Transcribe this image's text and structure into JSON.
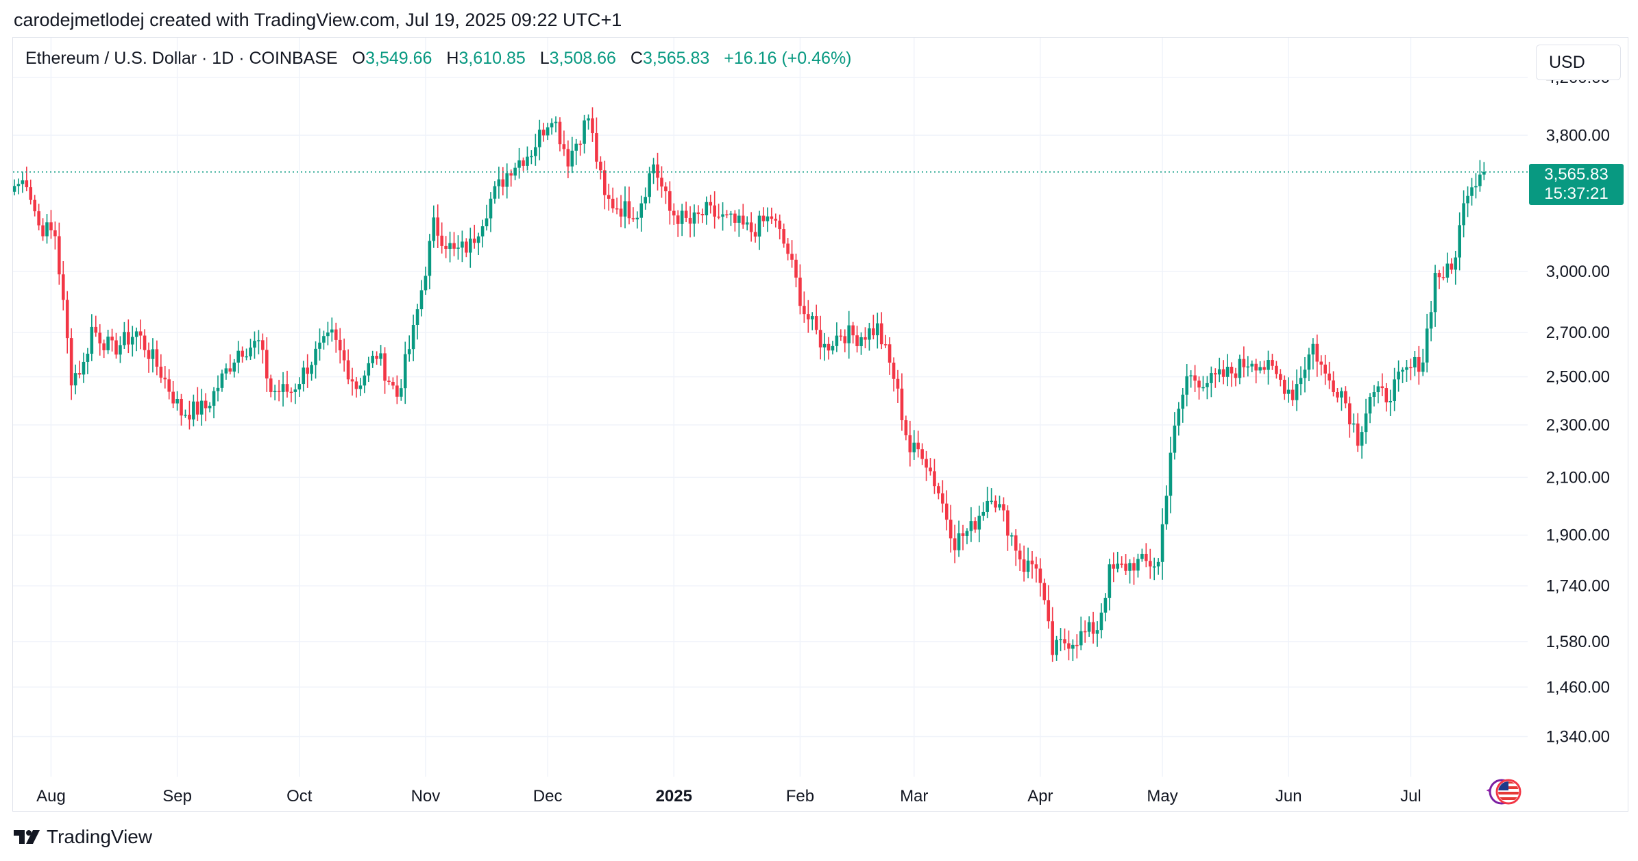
{
  "header": {
    "credit": "carodejmetlodej created with TradingView.com, Jul 19, 2025 09:22 UTC+1"
  },
  "legend": {
    "symbol": "Ethereum / U.S. Dollar · 1D · COINBASE",
    "open_label": "O",
    "open": "3,549.66",
    "high_label": "H",
    "high": "3,610.85",
    "low_label": "L",
    "low": "3,508.66",
    "close_label": "C",
    "close": "3,565.83",
    "change": "+16.16 (+0.46%)"
  },
  "currency_button": "USD",
  "price_tag": {
    "price": "3,565.83",
    "countdown": "15:37:21"
  },
  "footer": {
    "brand": "TradingView"
  },
  "colors": {
    "up": "#089981",
    "down": "#f23645",
    "grid": "#f0f3fa",
    "text": "#131722"
  },
  "chart_data": {
    "type": "candlestick",
    "title": "Ethereum / U.S. Dollar · 1D · COINBASE",
    "scale": "log",
    "ylim": [
      1250,
      4500
    ],
    "y_ticks": [
      {
        "v": 4200,
        "label": "4,200.00"
      },
      {
        "v": 3800,
        "label": "3,800.00"
      },
      {
        "v": 3000,
        "label": "3,000.00"
      },
      {
        "v": 2700,
        "label": "2,700.00"
      },
      {
        "v": 2500,
        "label": "2,500.00"
      },
      {
        "v": 2300,
        "label": "2,300.00"
      },
      {
        "v": 2100,
        "label": "2,100.00"
      },
      {
        "v": 1900,
        "label": "1,900.00"
      },
      {
        "v": 1740,
        "label": "1,740.00"
      },
      {
        "v": 1580,
        "label": "1,580.00"
      },
      {
        "v": 1460,
        "label": "1,460.00"
      },
      {
        "v": 1340,
        "label": "1,340.00"
      }
    ],
    "x_ticks": [
      {
        "i": 9,
        "label": "Aug"
      },
      {
        "i": 40,
        "label": "Sep"
      },
      {
        "i": 70,
        "label": "Oct"
      },
      {
        "i": 101,
        "label": "Nov"
      },
      {
        "i": 131,
        "label": "Dec"
      },
      {
        "i": 162,
        "label": "2025",
        "bold": true
      },
      {
        "i": 193,
        "label": "Feb"
      },
      {
        "i": 221,
        "label": "Mar"
      },
      {
        "i": 252,
        "label": "Apr"
      },
      {
        "i": 282,
        "label": "May"
      },
      {
        "i": 313,
        "label": "Jun"
      },
      {
        "i": 343,
        "label": "Jul"
      }
    ],
    "last_price": 3565.83,
    "anchors": [
      {
        "i": 0,
        "c": 3480
      },
      {
        "i": 3,
        "c": 3520
      },
      {
        "i": 6,
        "c": 3250
      },
      {
        "i": 10,
        "c": 3200
      },
      {
        "i": 14,
        "c": 2500
      },
      {
        "i": 17,
        "c": 2550
      },
      {
        "i": 19,
        "c": 2720
      },
      {
        "i": 24,
        "c": 2620
      },
      {
        "i": 30,
        "c": 2700
      },
      {
        "i": 36,
        "c": 2520
      },
      {
        "i": 41,
        "c": 2350
      },
      {
        "i": 47,
        "c": 2370
      },
      {
        "i": 55,
        "c": 2620
      },
      {
        "i": 60,
        "c": 2650
      },
      {
        "i": 63,
        "c": 2440
      },
      {
        "i": 68,
        "c": 2440
      },
      {
        "i": 74,
        "c": 2600
      },
      {
        "i": 78,
        "c": 2680
      },
      {
        "i": 84,
        "c": 2460
      },
      {
        "i": 89,
        "c": 2600
      },
      {
        "i": 94,
        "c": 2420
      },
      {
        "i": 98,
        "c": 2700
      },
      {
        "i": 103,
        "c": 3250
      },
      {
        "i": 108,
        "c": 3100
      },
      {
        "i": 112,
        "c": 3140
      },
      {
        "i": 117,
        "c": 3400
      },
      {
        "i": 122,
        "c": 3600
      },
      {
        "i": 127,
        "c": 3700
      },
      {
        "i": 132,
        "c": 3950
      },
      {
        "i": 136,
        "c": 3650
      },
      {
        "i": 141,
        "c": 3920
      },
      {
        "i": 145,
        "c": 3400
      },
      {
        "i": 149,
        "c": 3350
      },
      {
        "i": 153,
        "c": 3330
      },
      {
        "i": 157,
        "c": 3620
      },
      {
        "i": 161,
        "c": 3330
      },
      {
        "i": 166,
        "c": 3260
      },
      {
        "i": 170,
        "c": 3330
      },
      {
        "i": 175,
        "c": 3280
      },
      {
        "i": 181,
        "c": 3220
      },
      {
        "i": 186,
        "c": 3300
      },
      {
        "i": 190,
        "c": 3100
      },
      {
        "i": 194,
        "c": 2800
      },
      {
        "i": 199,
        "c": 2630
      },
      {
        "i": 203,
        "c": 2700
      },
      {
        "i": 207,
        "c": 2680
      },
      {
        "i": 212,
        "c": 2720
      },
      {
        "i": 216,
        "c": 2500
      },
      {
        "i": 220,
        "c": 2200
      },
      {
        "i": 223,
        "c": 2200
      },
      {
        "i": 227,
        "c": 2050
      },
      {
        "i": 231,
        "c": 1880
      },
      {
        "i": 235,
        "c": 1920
      },
      {
        "i": 240,
        "c": 2050
      },
      {
        "i": 244,
        "c": 1930
      },
      {
        "i": 248,
        "c": 1800
      },
      {
        "i": 251,
        "c": 1810
      },
      {
        "i": 255,
        "c": 1550
      },
      {
        "i": 258,
        "c": 1580
      },
      {
        "i": 261,
        "c": 1590
      },
      {
        "i": 266,
        "c": 1620
      },
      {
        "i": 269,
        "c": 1780
      },
      {
        "i": 275,
        "c": 1810
      },
      {
        "i": 281,
        "c": 1810
      },
      {
        "i": 284,
        "c": 2200
      },
      {
        "i": 288,
        "c": 2500
      },
      {
        "i": 294,
        "c": 2480
      },
      {
        "i": 299,
        "c": 2520
      },
      {
        "i": 304,
        "c": 2580
      },
      {
        "i": 309,
        "c": 2520
      },
      {
        "i": 314,
        "c": 2430
      },
      {
        "i": 319,
        "c": 2640
      },
      {
        "i": 322,
        "c": 2500
      },
      {
        "i": 326,
        "c": 2440
      },
      {
        "i": 330,
        "c": 2250
      },
      {
        "i": 333,
        "c": 2420
      },
      {
        "i": 337,
        "c": 2420
      },
      {
        "i": 342,
        "c": 2520
      },
      {
        "i": 346,
        "c": 2580
      },
      {
        "i": 349,
        "c": 2980
      },
      {
        "i": 353,
        "c": 3000
      },
      {
        "i": 357,
        "c": 3480
      },
      {
        "i": 360,
        "c": 3549.66
      },
      {
        "i": 361,
        "c": 3565.83
      }
    ]
  }
}
